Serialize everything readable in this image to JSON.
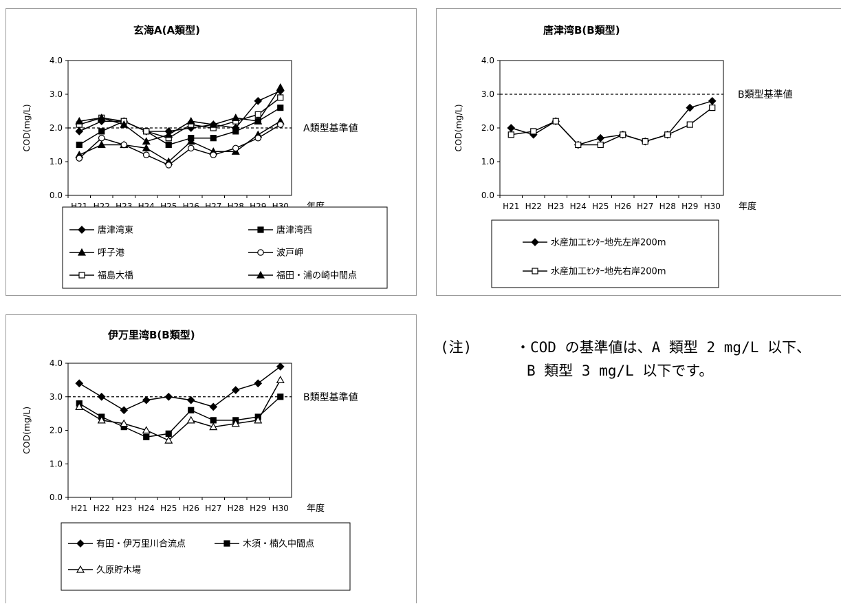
{
  "chart_data": [
    {
      "type": "line",
      "title": "玄海A(A類型)",
      "xlabel": "年度",
      "ylabel": "COD(mg/L)",
      "ylim": [
        0,
        4
      ],
      "yticks": [
        "0.0",
        "1.0",
        "2.0",
        "3.0",
        "4.0"
      ],
      "categories": [
        "H21",
        "H22",
        "H23",
        "H24",
        "H25",
        "H26",
        "H27",
        "H28",
        "H29",
        "H30"
      ],
      "reference_line": {
        "value": 2.0,
        "label": "A類型基準値"
      },
      "legend_position": "bottom",
      "series": [
        {
          "name": "唐津湾東",
          "marker": "diamond-filled",
          "values": [
            1.9,
            2.2,
            2.2,
            1.9,
            1.9,
            2.0,
            2.1,
            2.0,
            2.8,
            3.1
          ]
        },
        {
          "name": "唐津湾西",
          "marker": "square-filled",
          "values": [
            1.5,
            1.9,
            2.2,
            1.9,
            1.5,
            1.7,
            1.7,
            1.9,
            2.2,
            2.6
          ]
        },
        {
          "name": "呼子港",
          "marker": "triangle-filled",
          "values": [
            1.2,
            1.5,
            1.5,
            1.4,
            1.0,
            1.6,
            1.3,
            1.3,
            1.8,
            2.2
          ]
        },
        {
          "name": "波戸岬",
          "marker": "circle-open",
          "values": [
            1.1,
            1.7,
            1.5,
            1.2,
            0.9,
            1.4,
            1.2,
            1.4,
            1.7,
            2.1
          ]
        },
        {
          "name": "福島大橋",
          "marker": "square-open",
          "values": [
            2.1,
            2.3,
            2.2,
            1.9,
            1.7,
            2.1,
            2.0,
            2.2,
            2.4,
            2.9
          ]
        },
        {
          "name": "福田・浦の崎中間点",
          "marker": "triangle-filled",
          "values": [
            2.2,
            2.3,
            2.1,
            1.6,
            1.8,
            2.2,
            2.1,
            2.3,
            2.2,
            3.2
          ]
        }
      ]
    },
    {
      "type": "line",
      "title": "唐津湾B(B類型)",
      "xlabel": "年度",
      "ylabel": "COD(mg/L)",
      "ylim": [
        0,
        4
      ],
      "yticks": [
        "0.0",
        "1.0",
        "2.0",
        "3.0",
        "4.0"
      ],
      "categories": [
        "H21",
        "H22",
        "H23",
        "H24",
        "H25",
        "H26",
        "H27",
        "H28",
        "H29",
        "H30"
      ],
      "reference_line": {
        "value": 3.0,
        "label": "B類型基準値"
      },
      "legend_position": "bottom",
      "series": [
        {
          "name": "水産加工ｾﾝﾀｰ地先左岸200m",
          "marker": "diamond-filled",
          "values": [
            2.0,
            1.8,
            2.2,
            1.5,
            1.7,
            1.8,
            1.6,
            1.8,
            2.6,
            2.8
          ]
        },
        {
          "name": "水産加工ｾﾝﾀｰ地先右岸200m",
          "marker": "square-open",
          "values": [
            1.8,
            1.9,
            2.2,
            1.5,
            1.5,
            1.8,
            1.6,
            1.8,
            2.1,
            2.6
          ]
        }
      ]
    },
    {
      "type": "line",
      "title": "伊万里湾B(B類型)",
      "xlabel": "年度",
      "ylabel": "COD(mg/L)",
      "ylim": [
        0,
        4
      ],
      "yticks": [
        "0.0",
        "1.0",
        "2.0",
        "3.0",
        "4.0"
      ],
      "categories": [
        "H21",
        "H22",
        "H23",
        "H24",
        "H25",
        "H26",
        "H27",
        "H28",
        "H29",
        "H30"
      ],
      "reference_line": {
        "value": 3.0,
        "label": "B類型基準値"
      },
      "legend_position": "bottom",
      "series": [
        {
          "name": "有田・伊万里川合流点",
          "marker": "diamond-filled",
          "values": [
            3.4,
            3.0,
            2.6,
            2.9,
            3.0,
            2.9,
            2.7,
            3.2,
            3.4,
            3.9
          ]
        },
        {
          "name": "木須・楠久中間点",
          "marker": "square-filled",
          "values": [
            2.8,
            2.4,
            2.1,
            1.8,
            1.9,
            2.6,
            2.3,
            2.3,
            2.4,
            3.0
          ]
        },
        {
          "name": "久原貯木場",
          "marker": "triangle-open",
          "values": [
            2.7,
            2.3,
            2.2,
            2.0,
            1.7,
            2.3,
            2.1,
            2.2,
            2.3,
            3.5
          ]
        }
      ]
    }
  ],
  "note": {
    "prefix": "(注)",
    "line1": "・COD の基準値は、A 類型 2 mg/L 以下、",
    "line2": "B 類型 3 mg/L 以下です。"
  }
}
